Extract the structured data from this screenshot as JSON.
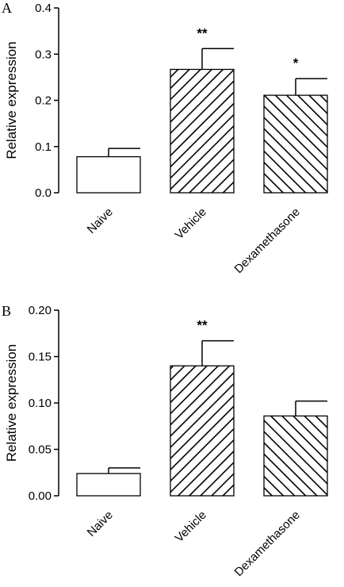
{
  "chart_data": [
    {
      "type": "bar",
      "panel": "A",
      "ylabel": "Relative expression",
      "ylim": [
        0,
        0.4
      ],
      "yticks": [
        "0.0",
        "0.1",
        "0.2",
        "0.3",
        "0.4"
      ],
      "categories": [
        "Naive",
        "Vehicle",
        "Dexamethasone"
      ],
      "values": [
        0.078,
        0.267,
        0.211
      ],
      "errors": [
        0.018,
        0.045,
        0.036
      ],
      "fills": [
        "white",
        "hatch-right",
        "hatch-left"
      ],
      "significance": [
        "",
        "**",
        "*"
      ]
    },
    {
      "type": "bar",
      "panel": "B",
      "ylabel": "Relative expression",
      "ylim": [
        0,
        0.2
      ],
      "yticks": [
        "0.00",
        "0.05",
        "0.10",
        "0.15",
        "0.20"
      ],
      "categories": [
        "Naive",
        "Vehicle",
        "Dexamethasone"
      ],
      "values": [
        0.024,
        0.14,
        0.086
      ],
      "errors": [
        0.006,
        0.027,
        0.016
      ],
      "fills": [
        "white",
        "hatch-right",
        "hatch-left"
      ],
      "significance": [
        "",
        "**",
        ""
      ]
    }
  ]
}
